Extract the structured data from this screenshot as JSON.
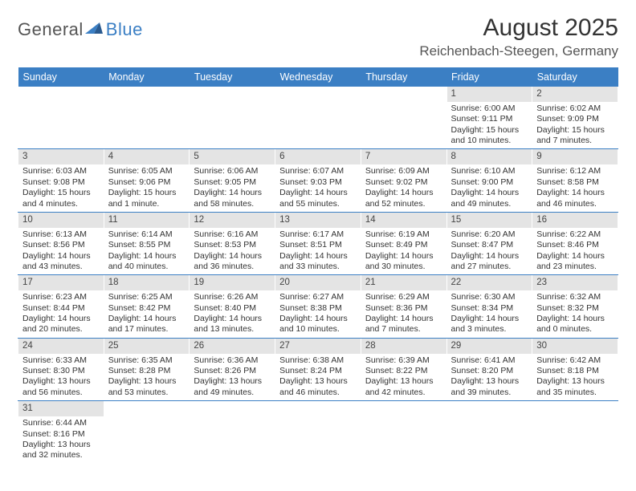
{
  "logo": {
    "text_a": "General",
    "text_b": "Blue"
  },
  "title": "August 2025",
  "location": "Reichenbach-Steegen, Germany",
  "day_headers": [
    "Sunday",
    "Monday",
    "Tuesday",
    "Wednesday",
    "Thursday",
    "Friday",
    "Saturday"
  ],
  "colors": {
    "header_bg": "#3b7fc4",
    "header_text": "#ffffff",
    "daynum_bg": "#e4e4e4",
    "row_border": "#3b7fc4",
    "body_text": "#333333"
  },
  "weeks": [
    [
      {
        "empty": true
      },
      {
        "empty": true
      },
      {
        "empty": true
      },
      {
        "empty": true
      },
      {
        "empty": true
      },
      {
        "day": "1",
        "sunrise": "Sunrise: 6:00 AM",
        "sunset": "Sunset: 9:11 PM",
        "daylight1": "Daylight: 15 hours",
        "daylight2": "and 10 minutes."
      },
      {
        "day": "2",
        "sunrise": "Sunrise: 6:02 AM",
        "sunset": "Sunset: 9:09 PM",
        "daylight1": "Daylight: 15 hours",
        "daylight2": "and 7 minutes."
      }
    ],
    [
      {
        "day": "3",
        "sunrise": "Sunrise: 6:03 AM",
        "sunset": "Sunset: 9:08 PM",
        "daylight1": "Daylight: 15 hours",
        "daylight2": "and 4 minutes."
      },
      {
        "day": "4",
        "sunrise": "Sunrise: 6:05 AM",
        "sunset": "Sunset: 9:06 PM",
        "daylight1": "Daylight: 15 hours",
        "daylight2": "and 1 minute."
      },
      {
        "day": "5",
        "sunrise": "Sunrise: 6:06 AM",
        "sunset": "Sunset: 9:05 PM",
        "daylight1": "Daylight: 14 hours",
        "daylight2": "and 58 minutes."
      },
      {
        "day": "6",
        "sunrise": "Sunrise: 6:07 AM",
        "sunset": "Sunset: 9:03 PM",
        "daylight1": "Daylight: 14 hours",
        "daylight2": "and 55 minutes."
      },
      {
        "day": "7",
        "sunrise": "Sunrise: 6:09 AM",
        "sunset": "Sunset: 9:02 PM",
        "daylight1": "Daylight: 14 hours",
        "daylight2": "and 52 minutes."
      },
      {
        "day": "8",
        "sunrise": "Sunrise: 6:10 AM",
        "sunset": "Sunset: 9:00 PM",
        "daylight1": "Daylight: 14 hours",
        "daylight2": "and 49 minutes."
      },
      {
        "day": "9",
        "sunrise": "Sunrise: 6:12 AM",
        "sunset": "Sunset: 8:58 PM",
        "daylight1": "Daylight: 14 hours",
        "daylight2": "and 46 minutes."
      }
    ],
    [
      {
        "day": "10",
        "sunrise": "Sunrise: 6:13 AM",
        "sunset": "Sunset: 8:56 PM",
        "daylight1": "Daylight: 14 hours",
        "daylight2": "and 43 minutes."
      },
      {
        "day": "11",
        "sunrise": "Sunrise: 6:14 AM",
        "sunset": "Sunset: 8:55 PM",
        "daylight1": "Daylight: 14 hours",
        "daylight2": "and 40 minutes."
      },
      {
        "day": "12",
        "sunrise": "Sunrise: 6:16 AM",
        "sunset": "Sunset: 8:53 PM",
        "daylight1": "Daylight: 14 hours",
        "daylight2": "and 36 minutes."
      },
      {
        "day": "13",
        "sunrise": "Sunrise: 6:17 AM",
        "sunset": "Sunset: 8:51 PM",
        "daylight1": "Daylight: 14 hours",
        "daylight2": "and 33 minutes."
      },
      {
        "day": "14",
        "sunrise": "Sunrise: 6:19 AM",
        "sunset": "Sunset: 8:49 PM",
        "daylight1": "Daylight: 14 hours",
        "daylight2": "and 30 minutes."
      },
      {
        "day": "15",
        "sunrise": "Sunrise: 6:20 AM",
        "sunset": "Sunset: 8:47 PM",
        "daylight1": "Daylight: 14 hours",
        "daylight2": "and 27 minutes."
      },
      {
        "day": "16",
        "sunrise": "Sunrise: 6:22 AM",
        "sunset": "Sunset: 8:46 PM",
        "daylight1": "Daylight: 14 hours",
        "daylight2": "and 23 minutes."
      }
    ],
    [
      {
        "day": "17",
        "sunrise": "Sunrise: 6:23 AM",
        "sunset": "Sunset: 8:44 PM",
        "daylight1": "Daylight: 14 hours",
        "daylight2": "and 20 minutes."
      },
      {
        "day": "18",
        "sunrise": "Sunrise: 6:25 AM",
        "sunset": "Sunset: 8:42 PM",
        "daylight1": "Daylight: 14 hours",
        "daylight2": "and 17 minutes."
      },
      {
        "day": "19",
        "sunrise": "Sunrise: 6:26 AM",
        "sunset": "Sunset: 8:40 PM",
        "daylight1": "Daylight: 14 hours",
        "daylight2": "and 13 minutes."
      },
      {
        "day": "20",
        "sunrise": "Sunrise: 6:27 AM",
        "sunset": "Sunset: 8:38 PM",
        "daylight1": "Daylight: 14 hours",
        "daylight2": "and 10 minutes."
      },
      {
        "day": "21",
        "sunrise": "Sunrise: 6:29 AM",
        "sunset": "Sunset: 8:36 PM",
        "daylight1": "Daylight: 14 hours",
        "daylight2": "and 7 minutes."
      },
      {
        "day": "22",
        "sunrise": "Sunrise: 6:30 AM",
        "sunset": "Sunset: 8:34 PM",
        "daylight1": "Daylight: 14 hours",
        "daylight2": "and 3 minutes."
      },
      {
        "day": "23",
        "sunrise": "Sunrise: 6:32 AM",
        "sunset": "Sunset: 8:32 PM",
        "daylight1": "Daylight: 14 hours",
        "daylight2": "and 0 minutes."
      }
    ],
    [
      {
        "day": "24",
        "sunrise": "Sunrise: 6:33 AM",
        "sunset": "Sunset: 8:30 PM",
        "daylight1": "Daylight: 13 hours",
        "daylight2": "and 56 minutes."
      },
      {
        "day": "25",
        "sunrise": "Sunrise: 6:35 AM",
        "sunset": "Sunset: 8:28 PM",
        "daylight1": "Daylight: 13 hours",
        "daylight2": "and 53 minutes."
      },
      {
        "day": "26",
        "sunrise": "Sunrise: 6:36 AM",
        "sunset": "Sunset: 8:26 PM",
        "daylight1": "Daylight: 13 hours",
        "daylight2": "and 49 minutes."
      },
      {
        "day": "27",
        "sunrise": "Sunrise: 6:38 AM",
        "sunset": "Sunset: 8:24 PM",
        "daylight1": "Daylight: 13 hours",
        "daylight2": "and 46 minutes."
      },
      {
        "day": "28",
        "sunrise": "Sunrise: 6:39 AM",
        "sunset": "Sunset: 8:22 PM",
        "daylight1": "Daylight: 13 hours",
        "daylight2": "and 42 minutes."
      },
      {
        "day": "29",
        "sunrise": "Sunrise: 6:41 AM",
        "sunset": "Sunset: 8:20 PM",
        "daylight1": "Daylight: 13 hours",
        "daylight2": "and 39 minutes."
      },
      {
        "day": "30",
        "sunrise": "Sunrise: 6:42 AM",
        "sunset": "Sunset: 8:18 PM",
        "daylight1": "Daylight: 13 hours",
        "daylight2": "and 35 minutes."
      }
    ],
    [
      {
        "day": "31",
        "sunrise": "Sunrise: 6:44 AM",
        "sunset": "Sunset: 8:16 PM",
        "daylight1": "Daylight: 13 hours",
        "daylight2": "and 32 minutes."
      },
      {
        "empty": true
      },
      {
        "empty": true
      },
      {
        "empty": true
      },
      {
        "empty": true
      },
      {
        "empty": true
      },
      {
        "empty": true
      }
    ]
  ]
}
